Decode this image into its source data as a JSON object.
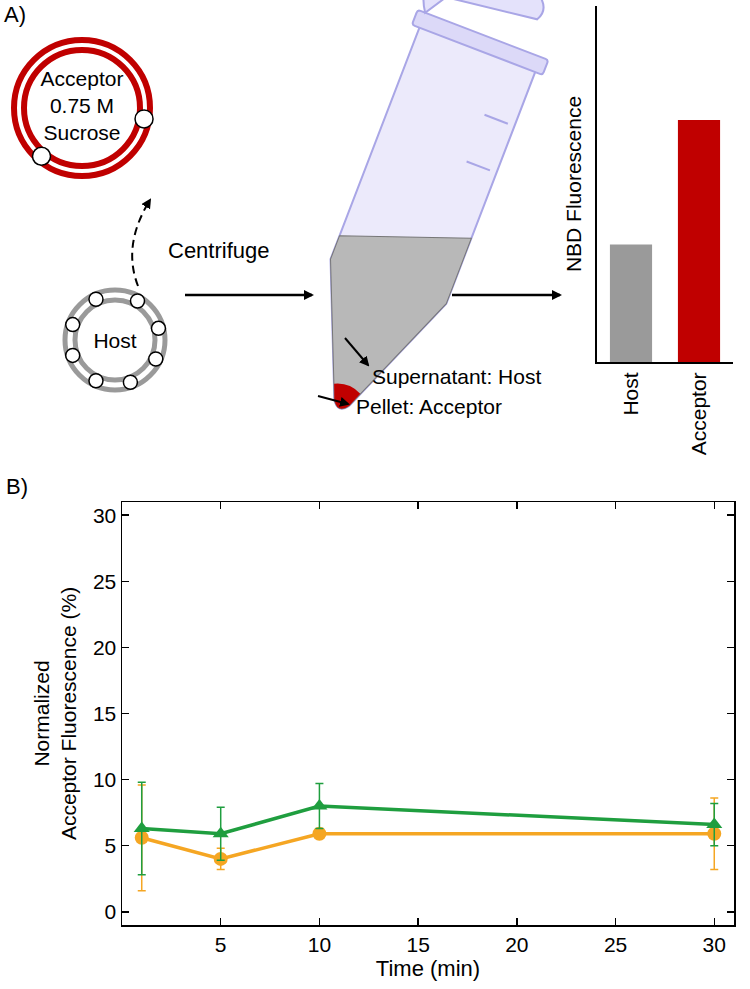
{
  "diagram": {
    "label": "A)",
    "acceptor": {
      "text": [
        "Acceptor",
        "0.75 M",
        "Sucrose"
      ],
      "color": "#c00000"
    },
    "host": {
      "text": "Host",
      "color": "#9a9a9a"
    },
    "arrow_label": "Centrifuge",
    "supernatant_label": "Supernatant: Host",
    "pellet_label": "Pellet: Acceptor"
  },
  "chart_data": [
    {
      "type": "bar",
      "y_label": "NBD Fluorescence",
      "categories": [
        "Host",
        "Acceptor"
      ],
      "values": [
        33,
        68
      ],
      "colors": [
        "#9a9a9a",
        "#c00000"
      ],
      "ylim": [
        0,
        100
      ],
      "tick_labels": "x",
      "grid": false
    },
    {
      "type": "line",
      "annotations": [
        {
          "text": "B)"
        }
      ],
      "x_label": "Time (min)",
      "y_label": [
        "Normalized",
        "Acceptor Fluorescence (%)"
      ],
      "x": [
        1,
        5,
        10,
        30
      ],
      "series": [
        {
          "color": "#f5a623",
          "marker": "circle",
          "values": [
            5.6,
            4.0,
            5.9,
            5.9
          ],
          "errors": [
            4.0,
            0.8,
            0.3,
            2.7
          ]
        },
        {
          "color": "#1f9e3f",
          "marker": "triangle-up",
          "values": [
            6.3,
            5.9,
            8.0,
            6.6
          ],
          "errors": [
            3.5,
            2.0,
            1.7,
            1.6
          ]
        }
      ],
      "xlim": [
        0,
        31
      ],
      "ylim": [
        -1,
        31
      ],
      "xticks": [
        5,
        10,
        15,
        20,
        25,
        30
      ],
      "yticks": [
        0,
        5,
        10,
        15,
        20,
        25,
        30
      ],
      "grid": false
    }
  ]
}
